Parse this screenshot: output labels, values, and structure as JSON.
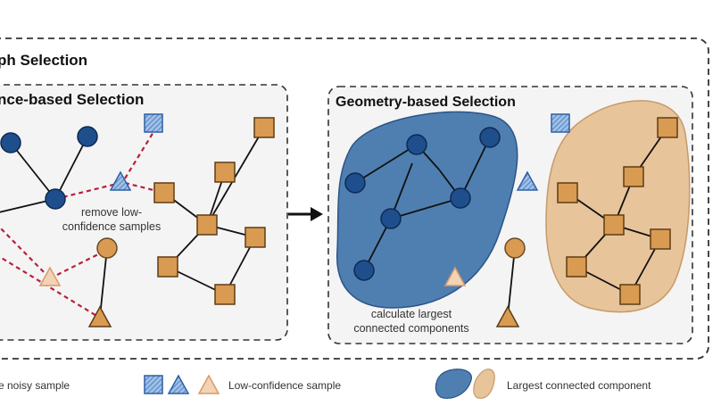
{
  "outer_title": "ph Selection",
  "left_panel": {
    "title": "nce-based Selection",
    "note_lines": [
      "remove low-",
      "confidence samples"
    ]
  },
  "right_panel": {
    "title": "Geometry-based Selection",
    "note_lines": [
      "calculate largest",
      "connected components"
    ]
  },
  "legend": {
    "noisy": "e noisy sample",
    "low_confidence": "Low-confidence sample",
    "largest_component": "Largest connected component"
  },
  "colors": {
    "blue_node": "#1f4e8c",
    "orange_node": "#d99a52",
    "blue_region": "#4f7fb0",
    "orange_region": "#e8c49b",
    "red_dashed": "#b8203a"
  }
}
